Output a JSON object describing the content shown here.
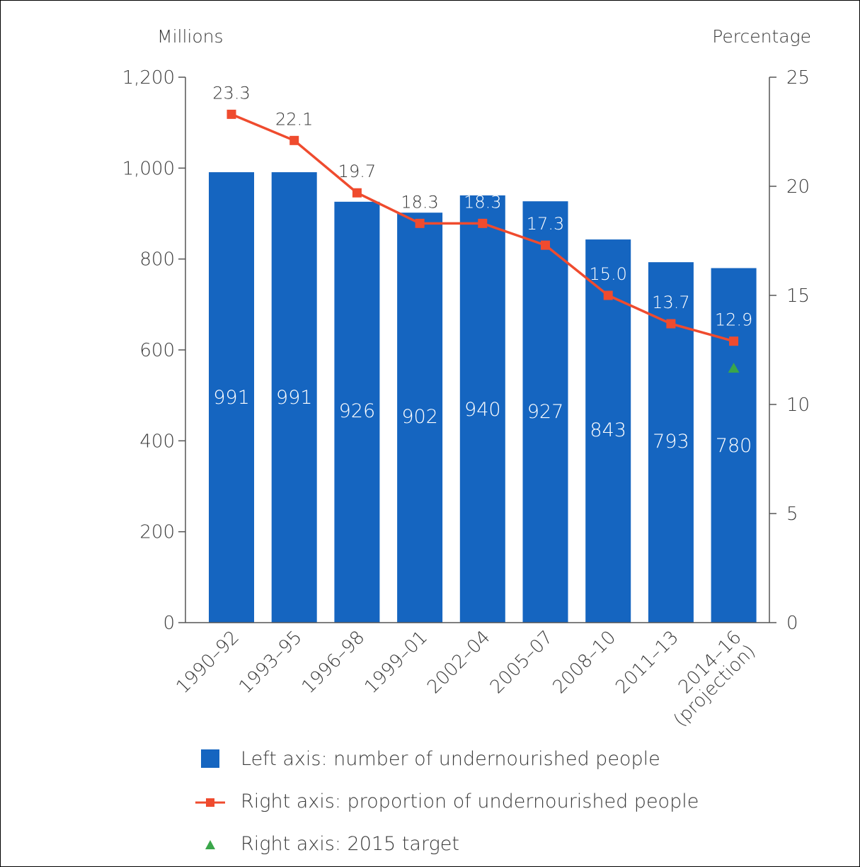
{
  "colors": {
    "bar": "#1565c0",
    "line": "#ef4b2e",
    "target": "#3aa64a",
    "axis": "#555555",
    "text": "#3a3a3a"
  },
  "chart_data": {
    "type": "bar",
    "categories": [
      "1990–92",
      "1993–95",
      "1996–98",
      "1999–01",
      "2002–04",
      "2005–07",
      "2008–10",
      "2011–13",
      "2014–16\n(projection)"
    ],
    "series": [
      {
        "name": "Left axis: number of undernourished people",
        "axis": "left",
        "type": "bar",
        "values": [
          991,
          991,
          926,
          902,
          940,
          927,
          843,
          793,
          780
        ]
      },
      {
        "name": "Right axis: proportion of undernourished people",
        "axis": "right",
        "type": "line",
        "values": [
          23.3,
          22.1,
          19.7,
          18.3,
          18.3,
          17.3,
          15.0,
          13.7,
          12.9
        ]
      },
      {
        "name": "Right axis: 2015 target",
        "axis": "right",
        "type": "marker",
        "category_index": 8,
        "value": 11.65
      }
    ],
    "left_axis": {
      "label": "Millions",
      "ylim": [
        0,
        1200
      ],
      "ticks": [
        0,
        200,
        400,
        600,
        800,
        1000,
        1200
      ],
      "tick_labels": [
        "0",
        "200",
        "400",
        "600",
        "800",
        "1,000",
        "1,200"
      ]
    },
    "right_axis": {
      "label": "Percentage",
      "ylim": [
        0,
        25
      ],
      "ticks": [
        0,
        5,
        10,
        15,
        20,
        25
      ],
      "tick_labels": [
        "0",
        "5",
        "10",
        "15",
        "20",
        "25"
      ]
    },
    "grid": false,
    "legend_position": "bottom"
  }
}
